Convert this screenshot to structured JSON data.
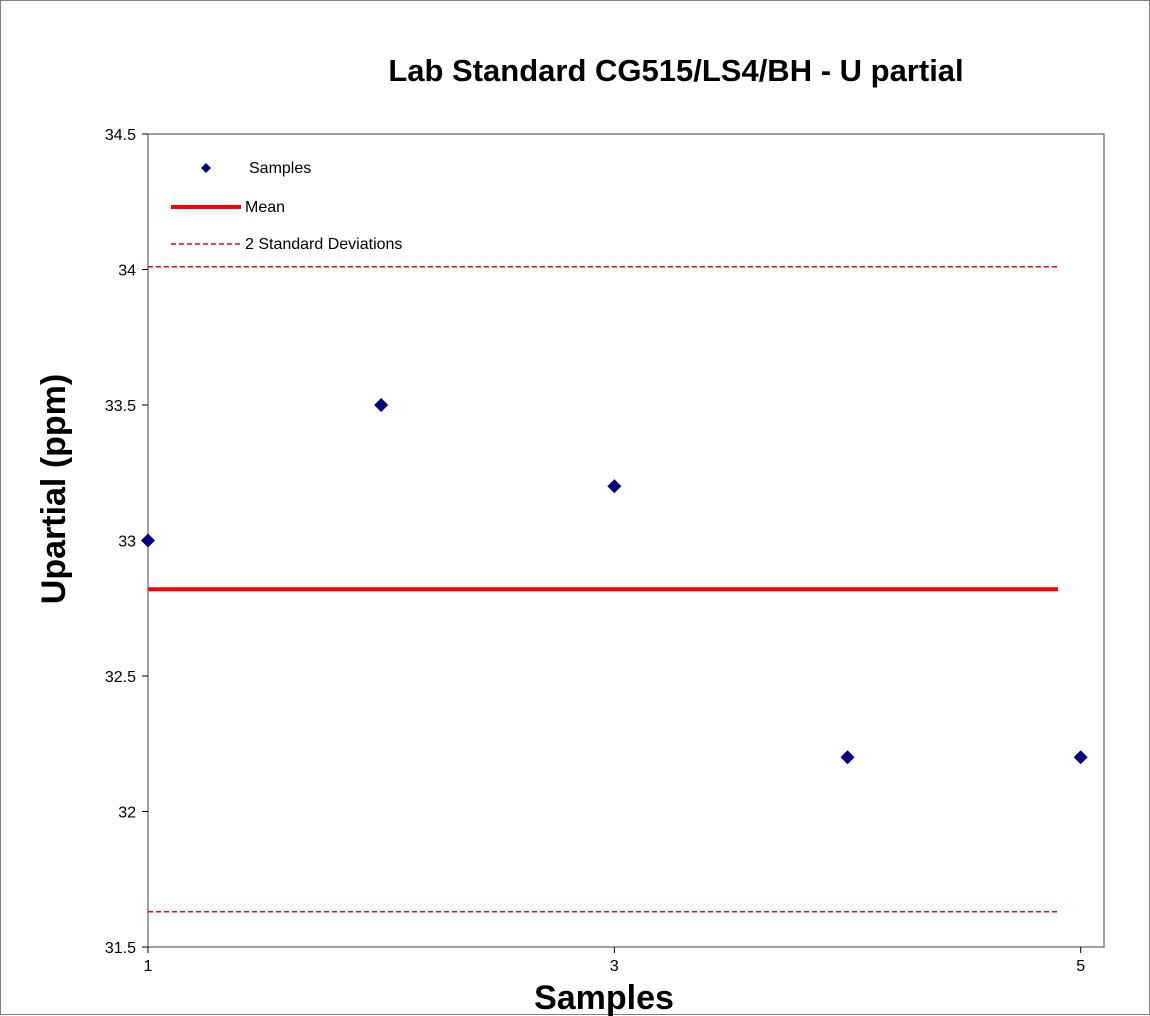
{
  "chart_data": {
    "type": "scatter",
    "title": "Lab Standard CG515/LS4/BH  - U partial",
    "xlabel": "Samples",
    "ylabel": "Upartial (ppm)",
    "xlim": [
      1,
      5.1
    ],
    "ylim": [
      31.5,
      34.5
    ],
    "x_ticks": [
      1,
      3,
      5
    ],
    "y_ticks": [
      31.5,
      32,
      32.5,
      33,
      33.5,
      34,
      34.5
    ],
    "y_tick_labels": [
      "31.5",
      "32",
      "32.5",
      "33",
      "33.5",
      "34",
      "34.5"
    ],
    "grid": false,
    "legend_position": "top-left",
    "legend": [
      "Samples",
      "Mean",
      "2 Standard Deviations"
    ],
    "series": [
      {
        "name": "Samples",
        "kind": "points",
        "color": "#000080",
        "marker": "diamond",
        "x": [
          1,
          2,
          3,
          4,
          5
        ],
        "y": [
          33.0,
          33.5,
          33.2,
          32.2,
          32.2
        ]
      },
      {
        "name": "Mean",
        "kind": "hline",
        "color": "#ff0000",
        "style": "solid",
        "y": 32.82
      },
      {
        "name": "2 Standard Deviations",
        "kind": "hline",
        "color": "#ff0000",
        "style": "dashed",
        "y": [
          34.01,
          31.63
        ]
      }
    ]
  }
}
